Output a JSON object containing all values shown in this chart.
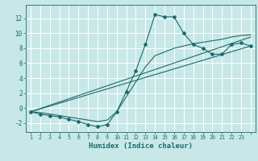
{
  "title": "",
  "xlabel": "Humidex (Indice chaleur)",
  "background_color": "#c8e8e8",
  "grid_color": "#ffffff",
  "line_color": "#1a6b6b",
  "xlim": [
    -0.5,
    23.5
  ],
  "ylim": [
    -3.2,
    13.8
  ],
  "xticks": [
    0,
    1,
    2,
    3,
    4,
    5,
    6,
    7,
    8,
    9,
    10,
    11,
    12,
    13,
    14,
    15,
    16,
    17,
    18,
    19,
    20,
    21,
    22,
    23
  ],
  "yticks": [
    -2,
    0,
    2,
    4,
    6,
    8,
    10,
    12
  ],
  "main_line_x": [
    0,
    1,
    2,
    3,
    4,
    5,
    6,
    7,
    8,
    9,
    10,
    11,
    12,
    13,
    14,
    15,
    16,
    17,
    18,
    19,
    20,
    21,
    22,
    23
  ],
  "main_line_y": [
    -0.5,
    -0.8,
    -1.0,
    -1.2,
    -1.5,
    -1.8,
    -2.2,
    -2.5,
    -2.2,
    -0.5,
    2.2,
    5.0,
    8.5,
    12.5,
    12.2,
    12.2,
    10.0,
    8.5,
    8.0,
    7.2,
    7.2,
    8.5,
    8.7,
    8.3
  ],
  "line2_x": [
    0,
    1,
    2,
    3,
    4,
    5,
    6,
    7,
    8,
    9,
    10,
    11,
    12,
    13,
    14,
    15,
    16,
    17,
    18,
    19,
    20,
    21,
    22,
    23
  ],
  "line2_y": [
    -0.5,
    -0.6,
    -0.8,
    -1.0,
    -1.2,
    -1.4,
    -1.6,
    -1.8,
    -1.6,
    -0.5,
    1.5,
    3.5,
    5.5,
    7.0,
    7.5,
    8.0,
    8.3,
    8.6,
    8.8,
    9.0,
    9.2,
    9.5,
    9.7,
    9.8
  ],
  "line3_x": [
    0,
    23
  ],
  "line3_y": [
    -0.5,
    8.3
  ],
  "line4_x": [
    0,
    23
  ],
  "line4_y": [
    -0.5,
    9.5
  ]
}
